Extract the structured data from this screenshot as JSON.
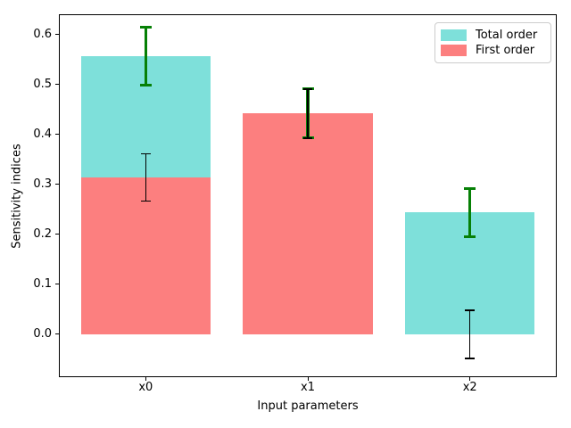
{
  "chart_data": {
    "type": "bar",
    "title": "",
    "xlabel": "Input parameters",
    "ylabel": "Sensitivity indices",
    "categories": [
      "x0",
      "x1",
      "x2"
    ],
    "series": [
      {
        "name": "Total order",
        "color": "#7EE0DA",
        "values": [
          0.557,
          0.442,
          0.244
        ],
        "errors": [
          0.058,
          0.049,
          0.048
        ],
        "error_color": "#068006"
      },
      {
        "name": "First order",
        "color": "#FC7F7F",
        "values": [
          0.314,
          0.442,
          0.0
        ],
        "errors": [
          0.047,
          0.049,
          0.048
        ],
        "error_color": "#000000"
      }
    ],
    "bar_layout": "overlaid",
    "bar_width_fraction": 0.8,
    "xlim": [
      -0.53,
      2.53
    ],
    "ylim": [
      -0.084,
      0.639
    ],
    "y_ticks": [
      0.0,
      0.1,
      0.2,
      0.3,
      0.4,
      0.5,
      0.6
    ],
    "grid": false,
    "legend_position": "upper right",
    "axis_color": "#000000"
  }
}
